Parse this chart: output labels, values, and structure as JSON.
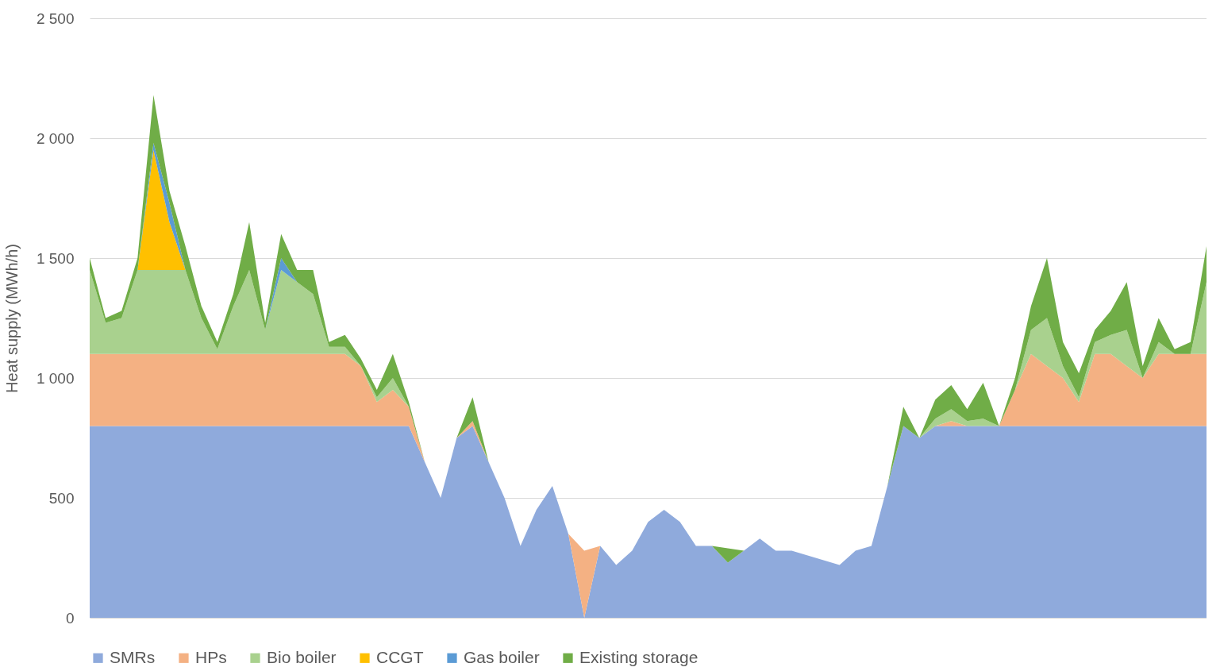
{
  "chart_data": {
    "type": "area",
    "stacked": true,
    "ylabel": "Heat supply (MWh/h)",
    "categories": [
      null,
      null,
      null,
      null,
      null,
      null,
      null,
      null,
      null,
      null,
      null,
      null,
      null,
      null,
      null,
      null,
      null,
      null,
      null,
      null,
      null,
      null,
      null,
      null,
      null,
      null,
      null,
      null,
      null,
      null,
      null,
      null,
      null,
      null,
      null,
      null,
      null,
      null,
      null,
      null,
      null,
      null,
      null,
      null,
      null,
      null,
      null,
      null,
      null,
      null,
      null,
      null,
      null,
      null,
      null,
      null,
      null,
      null,
      null,
      null,
      null,
      null,
      null,
      null,
      null,
      null,
      null,
      null,
      null,
      null,
      null
    ],
    "ylim": [
      0,
      2500
    ],
    "yticks": [
      0,
      500,
      {
        "value": 1000,
        "label": "1 000"
      },
      {
        "value": 1500,
        "label": "1 500"
      },
      {
        "value": 2000,
        "label": "2 000"
      },
      {
        "value": 2500,
        "label": "2 500"
      }
    ],
    "grid": "y",
    "legend": "bottom",
    "tick_labels": "y",
    "series": [
      {
        "name": "SMRs",
        "color": "#8faadc",
        "values": [
          800,
          800,
          800,
          800,
          800,
          800,
          800,
          800,
          800,
          800,
          800,
          800,
          800,
          800,
          800,
          800,
          800,
          800,
          800,
          800,
          800,
          650,
          500,
          750,
          800,
          650,
          500,
          300,
          450,
          550,
          350,
          0,
          300,
          220,
          280,
          400,
          450,
          400,
          300,
          300,
          230,
          280,
          330,
          280,
          280,
          260,
          240,
          220,
          280,
          300,
          550,
          800,
          750,
          800,
          800,
          800,
          800,
          800,
          800,
          800,
          800,
          800,
          800,
          800,
          800,
          800,
          800,
          800,
          800,
          800,
          800
        ]
      },
      {
        "name": "HPs",
        "color": "#f4b183",
        "values": [
          300,
          300,
          300,
          300,
          300,
          300,
          300,
          300,
          300,
          300,
          300,
          300,
          300,
          300,
          300,
          300,
          300,
          250,
          100,
          150,
          80,
          0,
          0,
          0,
          20,
          0,
          0,
          0,
          0,
          0,
          0,
          280,
          0,
          0,
          0,
          0,
          0,
          0,
          0,
          0,
          0,
          0,
          0,
          0,
          0,
          0,
          0,
          0,
          0,
          0,
          0,
          0,
          0,
          0,
          20,
          0,
          0,
          0,
          150,
          300,
          250,
          200,
          100,
          300,
          300,
          250,
          200,
          300,
          300,
          300,
          300
        ]
      },
      {
        "name": "Bio boiler",
        "color": "#a9d18e",
        "values": [
          350,
          130,
          150,
          350,
          350,
          350,
          350,
          150,
          20,
          200,
          350,
          100,
          350,
          300,
          250,
          30,
          30,
          0,
          20,
          50,
          0,
          0,
          0,
          0,
          0,
          0,
          0,
          0,
          0,
          0,
          0,
          0,
          0,
          0,
          0,
          0,
          0,
          0,
          0,
          0,
          0,
          0,
          0,
          0,
          0,
          0,
          0,
          0,
          0,
          0,
          0,
          0,
          0,
          30,
          50,
          20,
          30,
          0,
          0,
          100,
          200,
          50,
          20,
          50,
          80,
          150,
          0,
          50,
          0,
          0,
          300
        ]
      },
      {
        "name": "CCGT",
        "color": "#ffc000",
        "values": [
          0,
          0,
          0,
          0,
          500,
          200,
          0,
          0,
          0,
          0,
          0,
          0,
          0,
          0,
          0,
          0,
          0,
          0,
          0,
          0,
          0,
          0,
          0,
          0,
          0,
          0,
          0,
          0,
          0,
          0,
          0,
          0,
          0,
          0,
          0,
          0,
          0,
          0,
          0,
          0,
          0,
          0,
          0,
          0,
          0,
          0,
          0,
          0,
          0,
          0,
          0,
          0,
          0,
          0,
          0,
          0,
          0,
          0,
          0,
          0,
          0,
          0,
          0,
          0,
          0,
          0,
          0,
          0,
          0,
          0,
          0
        ]
      },
      {
        "name": "Gas boiler",
        "color": "#5b9bd5",
        "values": [
          0,
          0,
          0,
          0,
          30,
          80,
          0,
          0,
          0,
          0,
          0,
          0,
          50,
          0,
          0,
          0,
          0,
          0,
          0,
          0,
          0,
          0,
          0,
          0,
          0,
          0,
          0,
          0,
          0,
          0,
          0,
          0,
          0,
          0,
          0,
          0,
          0,
          0,
          0,
          0,
          0,
          0,
          0,
          0,
          0,
          0,
          0,
          0,
          0,
          0,
          0,
          0,
          0,
          0,
          0,
          0,
          0,
          0,
          0,
          0,
          0,
          0,
          0,
          0,
          0,
          0,
          0,
          0,
          0,
          0,
          0
        ]
      },
      {
        "name": "Existing storage",
        "color": "#70ad47",
        "values": [
          50,
          20,
          30,
          50,
          200,
          50,
          100,
          50,
          30,
          50,
          200,
          30,
          100,
          50,
          100,
          20,
          50,
          30,
          30,
          100,
          20,
          0,
          0,
          0,
          100,
          0,
          0,
          0,
          0,
          0,
          0,
          0,
          0,
          0,
          0,
          0,
          0,
          0,
          0,
          0,
          60,
          0,
          0,
          0,
          0,
          0,
          0,
          0,
          0,
          0,
          0,
          80,
          0,
          80,
          100,
          50,
          150,
          0,
          50,
          100,
          250,
          100,
          100,
          50,
          100,
          200,
          50,
          100,
          20,
          50,
          150
        ]
      }
    ]
  }
}
